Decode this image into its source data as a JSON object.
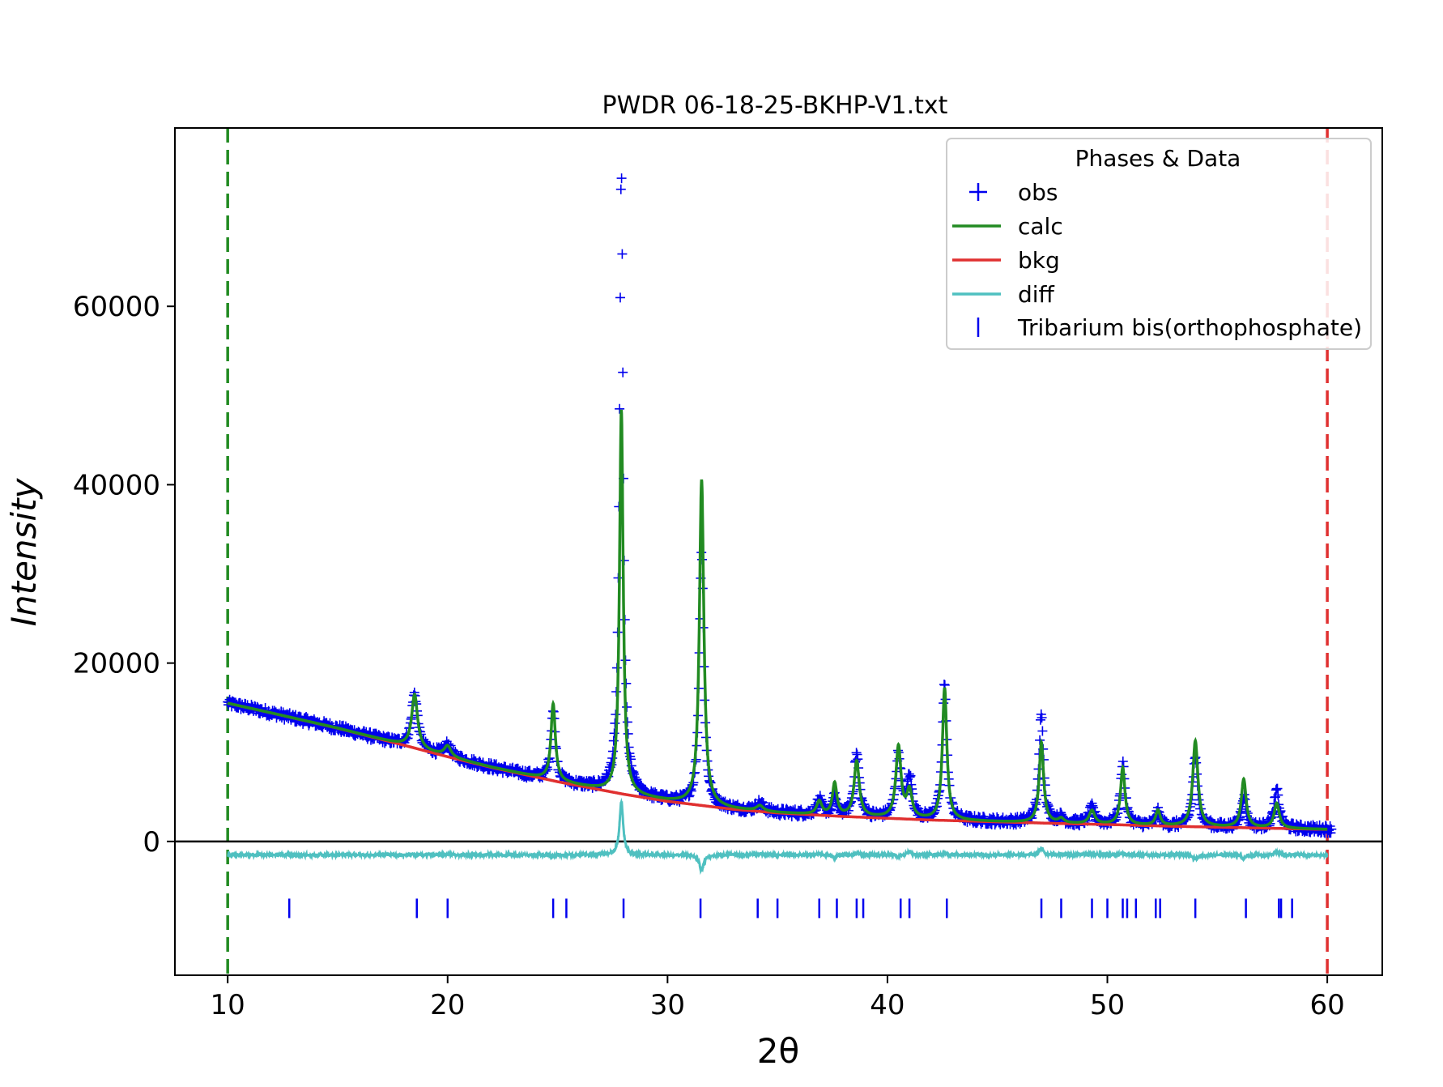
{
  "chart_data": {
    "type": "line",
    "title": "PWDR 06-18-25-BKHP-V1.txt",
    "xlabel": "2θ",
    "ylabel": "Intensity",
    "xlim": [
      7.6,
      62.5
    ],
    "ylim": [
      -15000,
      80000
    ],
    "x_ticks": [
      10,
      20,
      30,
      40,
      50,
      60
    ],
    "y_ticks": [
      0,
      20000,
      40000,
      60000
    ],
    "x_tick_labels": [
      "10",
      "20",
      "30",
      "40",
      "50",
      "60"
    ],
    "y_tick_labels": [
      "0",
      "20000",
      "40000",
      "60000"
    ],
    "zero_line": 0,
    "range_markers": [
      {
        "x": 10,
        "color": "#228B22"
      },
      {
        "x": 60,
        "color": "#e03030"
      }
    ],
    "legend": {
      "title": "Phases & Data",
      "location": "top-right",
      "entries": [
        "obs",
        "calc",
        "bkg",
        "diff",
        "Tribarium bis(orthophosphate)"
      ]
    },
    "background": {
      "name": "bkg",
      "color": "#e03030",
      "x": [
        10,
        12,
        15,
        18,
        20,
        22,
        25,
        28,
        30,
        33,
        35,
        38,
        40,
        42,
        45,
        48,
        50,
        53,
        55,
        58,
        60
      ],
      "y": [
        15500,
        14400,
        12700,
        10800,
        9500,
        8300,
        6700,
        5300,
        4500,
        3600,
        3200,
        2800,
        2600,
        2400,
        2200,
        2000,
        1900,
        1700,
        1600,
        1450,
        1350
      ]
    },
    "peaks": [
      {
        "pos": 18.5,
        "calc": 6000,
        "obs": 6100,
        "width": 0.16
      },
      {
        "pos": 20.0,
        "calc": 1200,
        "obs": 1300,
        "width": 0.18
      },
      {
        "pos": 24.8,
        "calc": 8600,
        "obs": 7800,
        "width": 0.12
      },
      {
        "pos": 27.9,
        "calc": 43000,
        "obs": 70000,
        "width": 0.1
      },
      {
        "pos": 31.55,
        "calc": 36500,
        "obs": 28500,
        "width": 0.12
      },
      {
        "pos": 34.2,
        "calc": 600,
        "obs": 900,
        "width": 0.18
      },
      {
        "pos": 36.9,
        "calc": 1500,
        "obs": 1700,
        "width": 0.14
      },
      {
        "pos": 37.6,
        "calc": 3600,
        "obs": 2000,
        "width": 0.12
      },
      {
        "pos": 38.6,
        "calc": 6200,
        "obs": 7000,
        "width": 0.14
      },
      {
        "pos": 40.5,
        "calc": 8000,
        "obs": 7000,
        "width": 0.14
      },
      {
        "pos": 41.0,
        "calc": 3000,
        "obs": 4500,
        "width": 0.14
      },
      {
        "pos": 42.6,
        "calc": 14800,
        "obs": 15300,
        "width": 0.12
      },
      {
        "pos": 47.0,
        "calc": 9000,
        "obs": 12500,
        "width": 0.12
      },
      {
        "pos": 47.9,
        "calc": 500,
        "obs": 600,
        "width": 0.15
      },
      {
        "pos": 49.3,
        "calc": 1500,
        "obs": 1800,
        "width": 0.15
      },
      {
        "pos": 50.7,
        "calc": 6400,
        "obs": 7000,
        "width": 0.12
      },
      {
        "pos": 52.3,
        "calc": 1700,
        "obs": 1500,
        "width": 0.12
      },
      {
        "pos": 54.0,
        "calc": 9600,
        "obs": 7500,
        "width": 0.14
      },
      {
        "pos": 56.2,
        "calc": 5400,
        "obs": 3500,
        "width": 0.13
      },
      {
        "pos": 57.7,
        "calc": 2800,
        "obs": 4200,
        "width": 0.14
      }
    ],
    "series": [
      {
        "name": "obs",
        "color": "#0000ee",
        "marker": "+"
      },
      {
        "name": "calc",
        "color": "#228B22"
      },
      {
        "name": "bkg",
        "color": "#e03030"
      },
      {
        "name": "diff",
        "color": "#4fc0c0",
        "offset": -1500
      },
      {
        "name": "Tribarium bis(orthophosphate)",
        "color": "#0000ee",
        "marker": "|",
        "y": -7500,
        "x": [
          12.8,
          18.6,
          20.0,
          24.8,
          25.4,
          28.0,
          31.5,
          34.1,
          35.0,
          36.9,
          37.7,
          38.6,
          38.9,
          40.6,
          41.0,
          42.7,
          47.0,
          47.9,
          49.3,
          50.0,
          50.7,
          50.9,
          51.3,
          52.2,
          52.4,
          54.0,
          56.3,
          57.8,
          57.9,
          58.4
        ]
      }
    ]
  }
}
